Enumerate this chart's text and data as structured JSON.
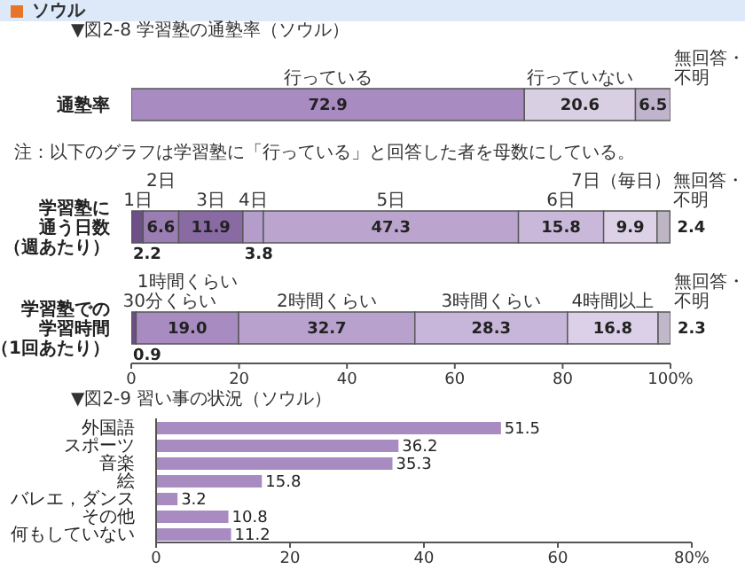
{
  "chart_data": [
    {
      "type": "bar",
      "orientation": "horizontal",
      "stacked": true,
      "title": "ソウル",
      "subtitle": "▼図2-8 学習塾の通塾率（ソウル）",
      "categories": [
        "通塾率"
      ],
      "data_labels": true,
      "tick_labels": "y",
      "xlim": [
        0,
        100
      ],
      "series": [
        {
          "name": "行っている",
          "color": "#a88bc0",
          "values": [
            72.9
          ]
        },
        {
          "name": "行っていない",
          "color": "#d9cfe3",
          "values": [
            20.6
          ]
        },
        {
          "name": "無回答・不明",
          "color": "#c0b3cc",
          "values": [
            6.5
          ]
        }
      ]
    },
    {
      "type": "bar",
      "orientation": "horizontal",
      "stacked": true,
      "annotations": [
        "注：以下のグラフは学習塾に「行っている」と回答した者を母数にしている。"
      ],
      "categories": [
        "学習塾に通う日数（週あたり）"
      ],
      "data_labels": true,
      "tick_labels": "y",
      "xlim": [
        0,
        100
      ],
      "series": [
        {
          "name": "1日",
          "color": "#6e4f86",
          "values": [
            2.2
          ]
        },
        {
          "name": "2日",
          "color": "#9a7db3",
          "values": [
            6.6
          ]
        },
        {
          "name": "3日",
          "color": "#8a6aa3",
          "values": [
            11.9
          ]
        },
        {
          "name": "4日",
          "color": "#b49ccb",
          "values": [
            3.8
          ]
        },
        {
          "name": "5日",
          "color": "#bba5cf",
          "values": [
            47.3
          ]
        },
        {
          "name": "6日",
          "color": "#c9b8da",
          "values": [
            15.8
          ]
        },
        {
          "name": "7日（毎日）",
          "color": "#dcd1e6",
          "values": [
            9.9
          ]
        },
        {
          "name": "無回答・不明",
          "color": "#bdb4c4",
          "values": [
            2.4
          ]
        }
      ]
    },
    {
      "type": "bar",
      "orientation": "horizontal",
      "stacked": true,
      "categories": [
        "学習塾での学習時間（1回あたり）"
      ],
      "data_labels": true,
      "xlim": [
        0,
        100
      ],
      "xticks": [
        0,
        20,
        40,
        60,
        80,
        {
          "value": 100,
          "label": "100%"
        }
      ],
      "series": [
        {
          "name": "30分くらい",
          "color": "#6e4f86",
          "values": [
            0.9
          ]
        },
        {
          "name": "1時間くらい",
          "color": "#a88bc0",
          "values": [
            19.0
          ],
          "value_labels": [
            "19.0"
          ]
        },
        {
          "name": "2時間くらい",
          "color": "#b8a1cd",
          "values": [
            32.7
          ]
        },
        {
          "name": "3時間くらい",
          "color": "#c8b6da",
          "values": [
            28.3
          ]
        },
        {
          "name": "4時間以上",
          "color": "#dccfe8",
          "values": [
            16.8
          ]
        },
        {
          "name": "無回答・不明",
          "color": "#c0b8c8",
          "values": [
            2.3
          ]
        }
      ]
    },
    {
      "type": "bar",
      "orientation": "horizontal",
      "title": "▼図2-9 習い事の状況（ソウル）",
      "categories": [
        "外国語",
        "スポーツ",
        "音楽",
        "絵",
        "バレエ，ダンス",
        "その他",
        "何もしていない"
      ],
      "values": [
        51.5,
        36.2,
        35.3,
        15.8,
        3.2,
        10.8,
        11.2
      ],
      "color": "#a88bc0",
      "data_labels": true,
      "xlim": [
        0,
        80
      ],
      "xticks": [
        0,
        20,
        40,
        60,
        {
          "value": 80,
          "label": "80%"
        }
      ]
    }
  ]
}
